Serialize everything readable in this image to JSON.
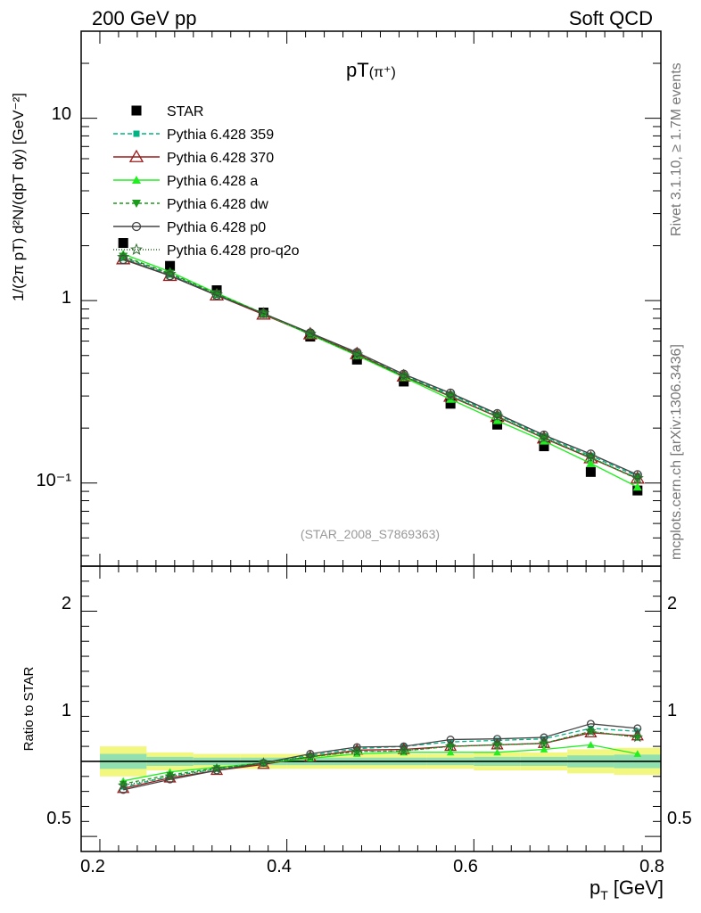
{
  "header": {
    "left": "200 GeV pp",
    "right": "Soft QCD"
  },
  "side_text": {
    "rivet": "Rivet 3.1.10, ≥ 1.7M events",
    "source": "mcplots.cern.ch [arXiv:1306.3436]"
  },
  "main_panel": {
    "title_main": "pT",
    "title_paren": "(π⁺)",
    "ylabel": "1/(2π pT) d²N/(dpT dy) [GeV⁻²]",
    "ytick_labels": [
      "10",
      "1",
      "10⁻¹"
    ],
    "watermark": "(STAR_2008_S7869363)"
  },
  "ratio_panel": {
    "ylabel": "Ratio to STAR",
    "ytick_labels_left": [
      "2",
      "1",
      "0.5"
    ],
    "ytick_labels_right": [
      "2",
      "1",
      "0.5"
    ]
  },
  "x_axis": {
    "label": "p",
    "label_sub": "T",
    "label_unit": "[GeV]",
    "tick_labels": [
      "0.2",
      "0.4",
      "0.6",
      "0.8"
    ]
  },
  "colors": {
    "STAR": "#000000",
    "p359": "#00b383",
    "p370": "#9b1a1a",
    "pa": "#22ee22",
    "pdw": "#1a9b1a",
    "pp0": "#444444",
    "pq2o": "#2e6b2e",
    "band_yellow": "#f2f780",
    "band_green": "#90e0b0"
  },
  "chart_data": {
    "type": "scatter",
    "x": [
      0.225,
      0.275,
      0.325,
      0.375,
      0.425,
      0.475,
      0.525,
      0.575,
      0.625,
      0.675,
      0.725,
      0.775
    ],
    "xlim": [
      0.18,
      0.8
    ],
    "ylim_main": [
      0.035,
      30
    ],
    "yscale_main": "log",
    "ylim_ratio": [
      0.4,
      2.3
    ],
    "legend_position": "top-left",
    "series": [
      {
        "key": "STAR",
        "name": "STAR",
        "marker": "square",
        "dash": "",
        "values": [
          2.07,
          1.55,
          1.14,
          0.86,
          0.635,
          0.475,
          0.36,
          0.272,
          0.209,
          0.159,
          0.115,
          0.091
        ]
      },
      {
        "key": "p359",
        "name": "Pythia 6.428 359",
        "marker": "smallsquare",
        "dash": "5,3",
        "values": [
          1.72,
          1.39,
          1.08,
          0.85,
          0.66,
          0.515,
          0.39,
          0.306,
          0.237,
          0.18,
          0.141,
          0.109
        ]
      },
      {
        "key": "p370",
        "name": "Pythia 6.428 370",
        "marker": "triangle-open",
        "dash": "",
        "values": [
          1.69,
          1.37,
          1.07,
          0.84,
          0.655,
          0.51,
          0.385,
          0.298,
          0.231,
          0.176,
          0.137,
          0.106
        ]
      },
      {
        "key": "pa",
        "name": "Pythia 6.428 a",
        "marker": "triangle",
        "dash": "",
        "values": [
          1.8,
          1.44,
          1.1,
          0.85,
          0.65,
          0.5,
          0.38,
          0.288,
          0.22,
          0.17,
          0.128,
          0.095
        ]
      },
      {
        "key": "pdw",
        "name": "Pythia 6.428 dw",
        "marker": "triangle-down",
        "dash": "4,3",
        "values": [
          1.75,
          1.41,
          1.09,
          0.85,
          0.655,
          0.505,
          0.385,
          0.3,
          0.232,
          0.177,
          0.138,
          0.105
        ]
      },
      {
        "key": "pp0",
        "name": "Pythia 6.428 p0",
        "marker": "circle-open",
        "dash": "",
        "values": [
          1.68,
          1.37,
          1.07,
          0.85,
          0.665,
          0.52,
          0.395,
          0.311,
          0.24,
          0.183,
          0.144,
          0.111
        ]
      },
      {
        "key": "pq2o",
        "name": "Pythia 6.428 pro-q2o",
        "marker": "star",
        "dash": "1,2",
        "values": [
          1.73,
          1.4,
          1.08,
          0.85,
          0.655,
          0.505,
          0.385,
          0.3,
          0.232,
          0.177,
          0.138,
          0.106
        ]
      }
    ],
    "ratio_series": [
      {
        "key": "p359",
        "values": [
          0.83,
          0.9,
          0.95,
          0.99,
          1.04,
          1.085,
          1.1,
          1.13,
          1.14,
          1.15,
          1.22,
          1.2
        ]
      },
      {
        "key": "p370",
        "values": [
          0.82,
          0.89,
          0.94,
          0.98,
          1.03,
          1.075,
          1.08,
          1.1,
          1.11,
          1.12,
          1.19,
          1.17
        ]
      },
      {
        "key": "pa",
        "values": [
          0.87,
          0.93,
          0.96,
          0.99,
          1.02,
          1.05,
          1.06,
          1.06,
          1.06,
          1.08,
          1.11,
          1.05
        ]
      },
      {
        "key": "pdw",
        "values": [
          0.85,
          0.91,
          0.955,
          0.99,
          1.03,
          1.065,
          1.07,
          1.1,
          1.11,
          1.12,
          1.2,
          1.16
        ]
      },
      {
        "key": "pp0",
        "values": [
          0.81,
          0.88,
          0.94,
          0.99,
          1.05,
          1.095,
          1.1,
          1.145,
          1.15,
          1.16,
          1.25,
          1.22
        ]
      },
      {
        "key": "pq2o",
        "values": [
          0.84,
          0.9,
          0.95,
          0.99,
          1.03,
          1.065,
          1.07,
          1.1,
          1.11,
          1.12,
          1.2,
          1.16
        ]
      }
    ],
    "ratio_band": {
      "xedges": [
        0.2,
        0.25,
        0.3,
        0.35,
        0.4,
        0.45,
        0.5,
        0.55,
        0.6,
        0.65,
        0.7,
        0.75,
        0.8
      ],
      "yellow_half": [
        0.1,
        0.06,
        0.05,
        0.05,
        0.05,
        0.05,
        0.05,
        0.05,
        0.06,
        0.06,
        0.08,
        0.09
      ],
      "green_half": [
        0.05,
        0.03,
        0.025,
        0.025,
        0.025,
        0.025,
        0.025,
        0.025,
        0.03,
        0.03,
        0.04,
        0.045
      ]
    }
  }
}
